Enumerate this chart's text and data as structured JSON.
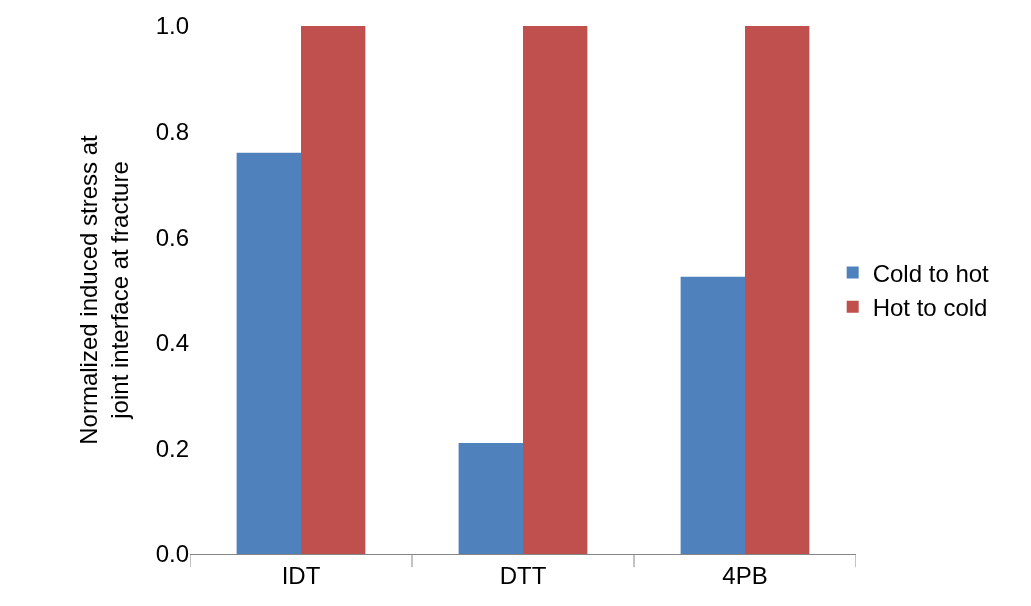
{
  "chart_data": {
    "type": "bar",
    "ylabel": "Normalized induced stress at\njoint interface at fracture",
    "categories": [
      "IDT",
      "DTT",
      "4PB"
    ],
    "series": [
      {
        "name": "Cold to hot",
        "color": "#4f81bd",
        "values": [
          0.76,
          0.21,
          0.525
        ]
      },
      {
        "name": "Hot to cold",
        "color": "#c0504d",
        "values": [
          1.0,
          1.0,
          1.0
        ]
      }
    ],
    "ylim": [
      0,
      1.0
    ],
    "yticks": [
      {
        "value": 0,
        "label": "0.0"
      },
      {
        "value": 0.2,
        "label": "0.2"
      },
      {
        "value": 0.4,
        "label": "0.4"
      },
      {
        "value": 0.6,
        "label": "0.6"
      },
      {
        "value": 0.8,
        "label": "0.8"
      },
      {
        "value": 1.0,
        "label": "1.0"
      }
    ],
    "legend": "right"
  }
}
